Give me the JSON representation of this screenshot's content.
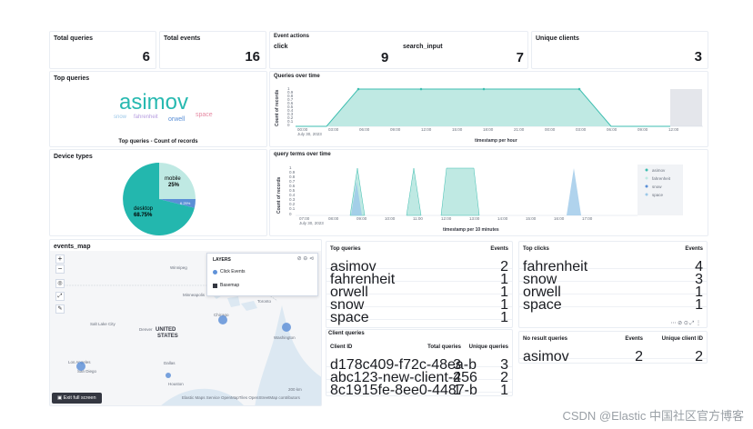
{
  "metrics": {
    "total_queries": {
      "label": "Total queries",
      "value": "6"
    },
    "total_events": {
      "label": "Total events",
      "value": "16"
    },
    "event_actions": {
      "title": "Event actions",
      "click_label": "click",
      "click_value": "9",
      "search_label": "search_input",
      "search_value": "7"
    },
    "unique_clients": {
      "label": "Unique clients",
      "value": "3"
    }
  },
  "top_queries_cloud": {
    "title": "Top queries",
    "caption": "Top queries - Count of records",
    "words": [
      "asimov",
      "snow",
      "fahrenheit",
      "orwell",
      "space"
    ]
  },
  "queries_over_time": {
    "title": "Queries over time",
    "ylabel": "Count of records",
    "xlabel": "timestamp per hour",
    "yticks": [
      "1",
      "0.9",
      "0.8",
      "0.7",
      "0.6",
      "0.5",
      "0.4",
      "0.3",
      "0.2",
      "0.1",
      "0"
    ],
    "xticks": [
      "00:00",
      "03:00",
      "06:00",
      "09:00",
      "12:00",
      "15:00",
      "18:00",
      "21:00",
      "00:00",
      "03:00",
      "06:00",
      "09:00",
      "12:00"
    ],
    "date_label": "July 30, 2023"
  },
  "device_types": {
    "title": "Device types",
    "mobile_label": "mobile",
    "mobile_pct": "25%",
    "desktop_label": "desktop",
    "desktop_pct": "68.75%",
    "tablet_pct": "6.25%"
  },
  "query_terms": {
    "title": "query terms over time",
    "ylabel": "Count of records",
    "xlabel": "timestamp per 10 minutes",
    "yticks": [
      "1",
      "0.9",
      "0.8",
      "0.7",
      "0.6",
      "0.5",
      "0.4",
      "0.3",
      "0.2",
      "0.1",
      "0"
    ],
    "xticks": [
      "07:00",
      "08:00",
      "09:00",
      "10:00",
      "11:00",
      "12:00",
      "13:00",
      "14:00",
      "15:00",
      "16:00",
      "17:00"
    ],
    "date_label": "July 30, 2023",
    "legend": [
      "asimov",
      "fahrenheit",
      "snow",
      "space"
    ]
  },
  "map": {
    "title": "events_map",
    "layers_title": "LAYERS",
    "layer1": "Click Events",
    "layer2": "Basemap",
    "exit": "Exit full screen",
    "attribution": "Elastic Maps Service   OpenMapTiles   OpenStreetMap contributors",
    "scale": "200 km",
    "labels": [
      "UNITED",
      "STATES",
      "Washington",
      "Chicago",
      "Denver",
      "Los Angeles",
      "San Diego",
      "Houston",
      "Dallas",
      "Salt Lake City",
      "Minneapolis",
      "Toronto",
      "Montréal",
      "Winnipeg"
    ]
  },
  "top_queries_table": {
    "title": "Top queries",
    "col_events": "Events",
    "rows": [
      {
        "q": "asimov",
        "n": "2"
      },
      {
        "q": "fahrenheit",
        "n": "1"
      },
      {
        "q": "orwell",
        "n": "1"
      },
      {
        "q": "snow",
        "n": "1"
      },
      {
        "q": "space",
        "n": "1"
      }
    ]
  },
  "top_clicks": {
    "title": "Top clicks",
    "col_events": "Events",
    "rows": [
      {
        "q": "fahrenheit",
        "n": "4"
      },
      {
        "q": "snow",
        "n": "3"
      },
      {
        "q": "orwell",
        "n": "1"
      },
      {
        "q": "space",
        "n": "1"
      }
    ]
  },
  "client_queries": {
    "title": "Client queries",
    "col_id": "Client ID",
    "col_total": "Total queries",
    "col_unique": "Unique queries",
    "rows": [
      {
        "id": "d178c409-f72c-48ea-b",
        "t": "3",
        "u": "3"
      },
      {
        "id": "abc123-new-client-456",
        "t": "2",
        "u": "2"
      },
      {
        "id": "8c1915fe-8ee0-4487-b",
        "t": "1",
        "u": "1"
      }
    ]
  },
  "no_result": {
    "title": "No result queries",
    "col_events": "Events",
    "col_unique": "Unique client ID",
    "rows": [
      {
        "q": "asimov",
        "e": "2",
        "u": "2"
      }
    ]
  },
  "watermark": "CSDN @Elastic 中国社区官方博客"
}
